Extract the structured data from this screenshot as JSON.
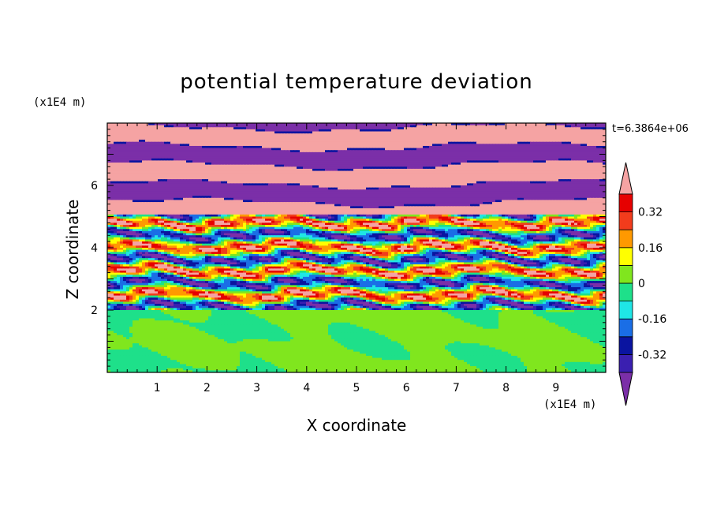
{
  "chart_data": {
    "type": "heatmap",
    "title": "potential temperature deviation",
    "xlabel": "X coordinate",
    "ylabel": "Z coordinate",
    "x_unit": "(x1E4 m)",
    "y_unit": "(x1E4 m)",
    "time_label": "t=6.3864e+06",
    "xlim": [
      0,
      10
    ],
    "ylim": [
      0,
      8
    ],
    "x_ticks": [
      "1",
      "2",
      "3",
      "4",
      "5",
      "6",
      "7",
      "8",
      "9"
    ],
    "y_ticks": [
      "2",
      "4",
      "6"
    ],
    "colorbar": {
      "levels": [
        -0.4,
        -0.32,
        -0.24,
        -0.16,
        -0.08,
        0,
        0.08,
        0.16,
        0.24,
        0.32,
        0.4
      ],
      "tick_labels": [
        "0.32",
        "0.16",
        "0",
        "-0.16",
        "-0.32"
      ],
      "colors": [
        "#7b2fa8",
        "#3a1fb0",
        "#0a14a0",
        "#1a6ee6",
        "#1fe6e6",
        "#1ee08a",
        "#80e61e",
        "#ffff00",
        "#ff9900",
        "#f23c1c",
        "#e60000",
        "#f5a3a3"
      ],
      "extend": "both"
    },
    "layers": [
      {
        "z_range": [
          0,
          2
        ],
        "description": "lower layer with weak green deviations"
      },
      {
        "z_range": [
          2,
          5
        ],
        "description": "banded layer with alternating strong positive and negative deviations"
      },
      {
        "z_range": [
          5,
          8
        ],
        "description": "upper layer with alternating pink and purple bands"
      }
    ]
  }
}
